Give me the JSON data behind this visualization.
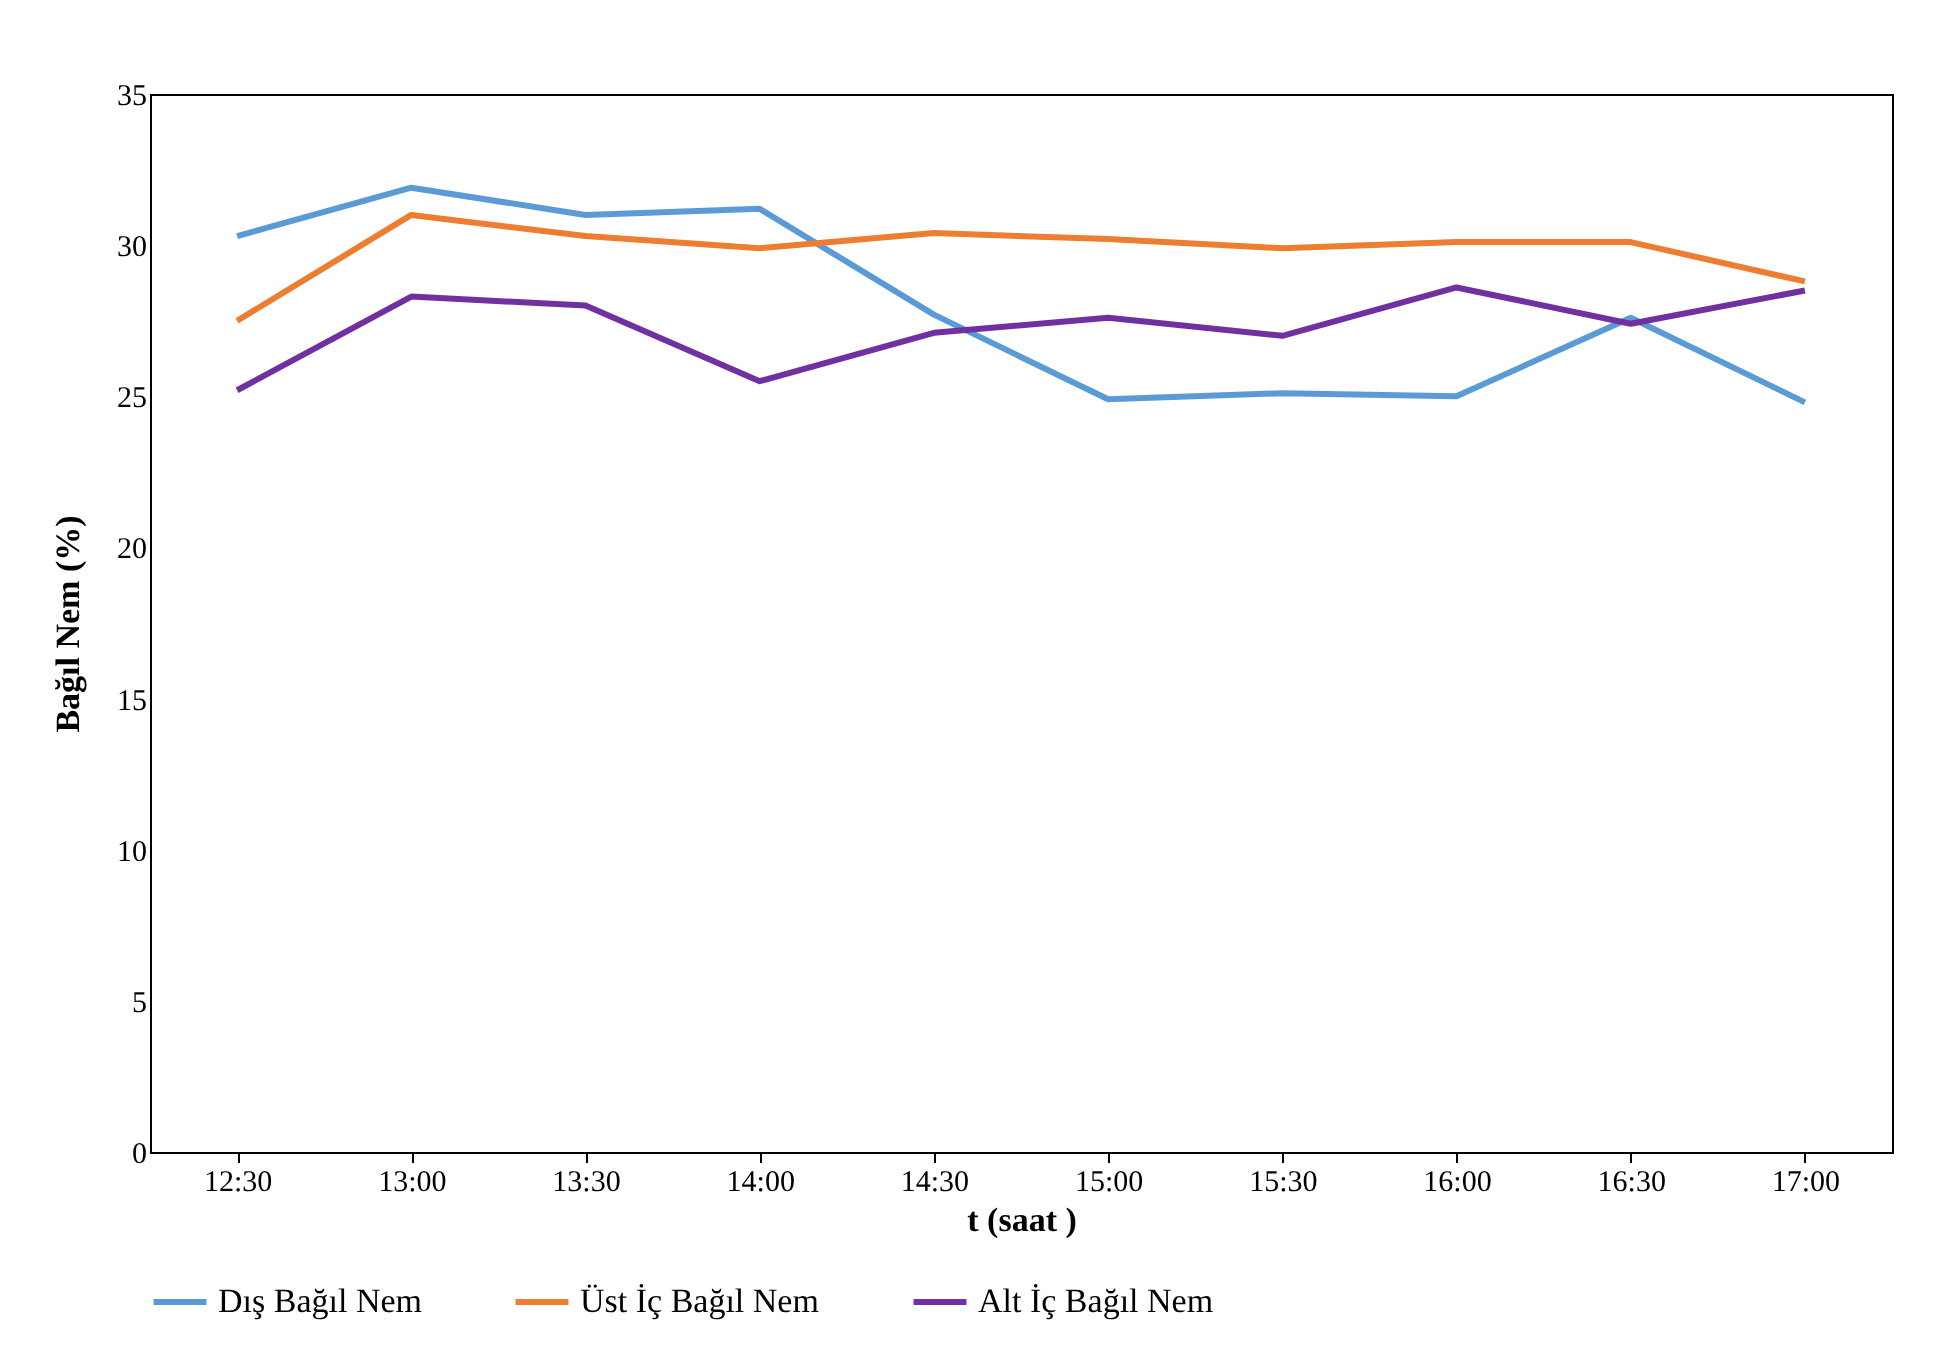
{
  "chart_data": {
    "type": "line",
    "xlabel": "t (saat )",
    "ylabel": "Bağıl Nem (%)",
    "categories": [
      "12:30",
      "13:00",
      "13:30",
      "14:00",
      "14:30",
      "15:00",
      "15:30",
      "16:00",
      "16:30",
      "17:00"
    ],
    "series": [
      {
        "name": "Dış Bağıl Nem",
        "color": "#5b9bd5",
        "values": [
          30.3,
          31.9,
          31.0,
          31.2,
          27.7,
          24.9,
          25.1,
          25.0,
          27.6,
          24.8
        ]
      },
      {
        "name": "Üst İç Bağıl Nem",
        "color": "#ed7d31",
        "values": [
          27.5,
          31.0,
          30.3,
          29.9,
          30.4,
          30.2,
          29.9,
          30.1,
          30.1,
          28.8
        ]
      },
      {
        "name": "Alt İç Bağıl Nem",
        "color": "#7030a0",
        "values": [
          25.2,
          28.3,
          28.0,
          25.5,
          27.1,
          27.6,
          27.0,
          28.6,
          27.4,
          28.5
        ]
      }
    ],
    "ylim": [
      0,
      35
    ],
    "yticks": [
      0,
      5,
      10,
      15,
      20,
      25,
      30,
      35
    ],
    "grid": false,
    "legend": "bottom",
    "marker": "none",
    "line_style": "solid"
  }
}
